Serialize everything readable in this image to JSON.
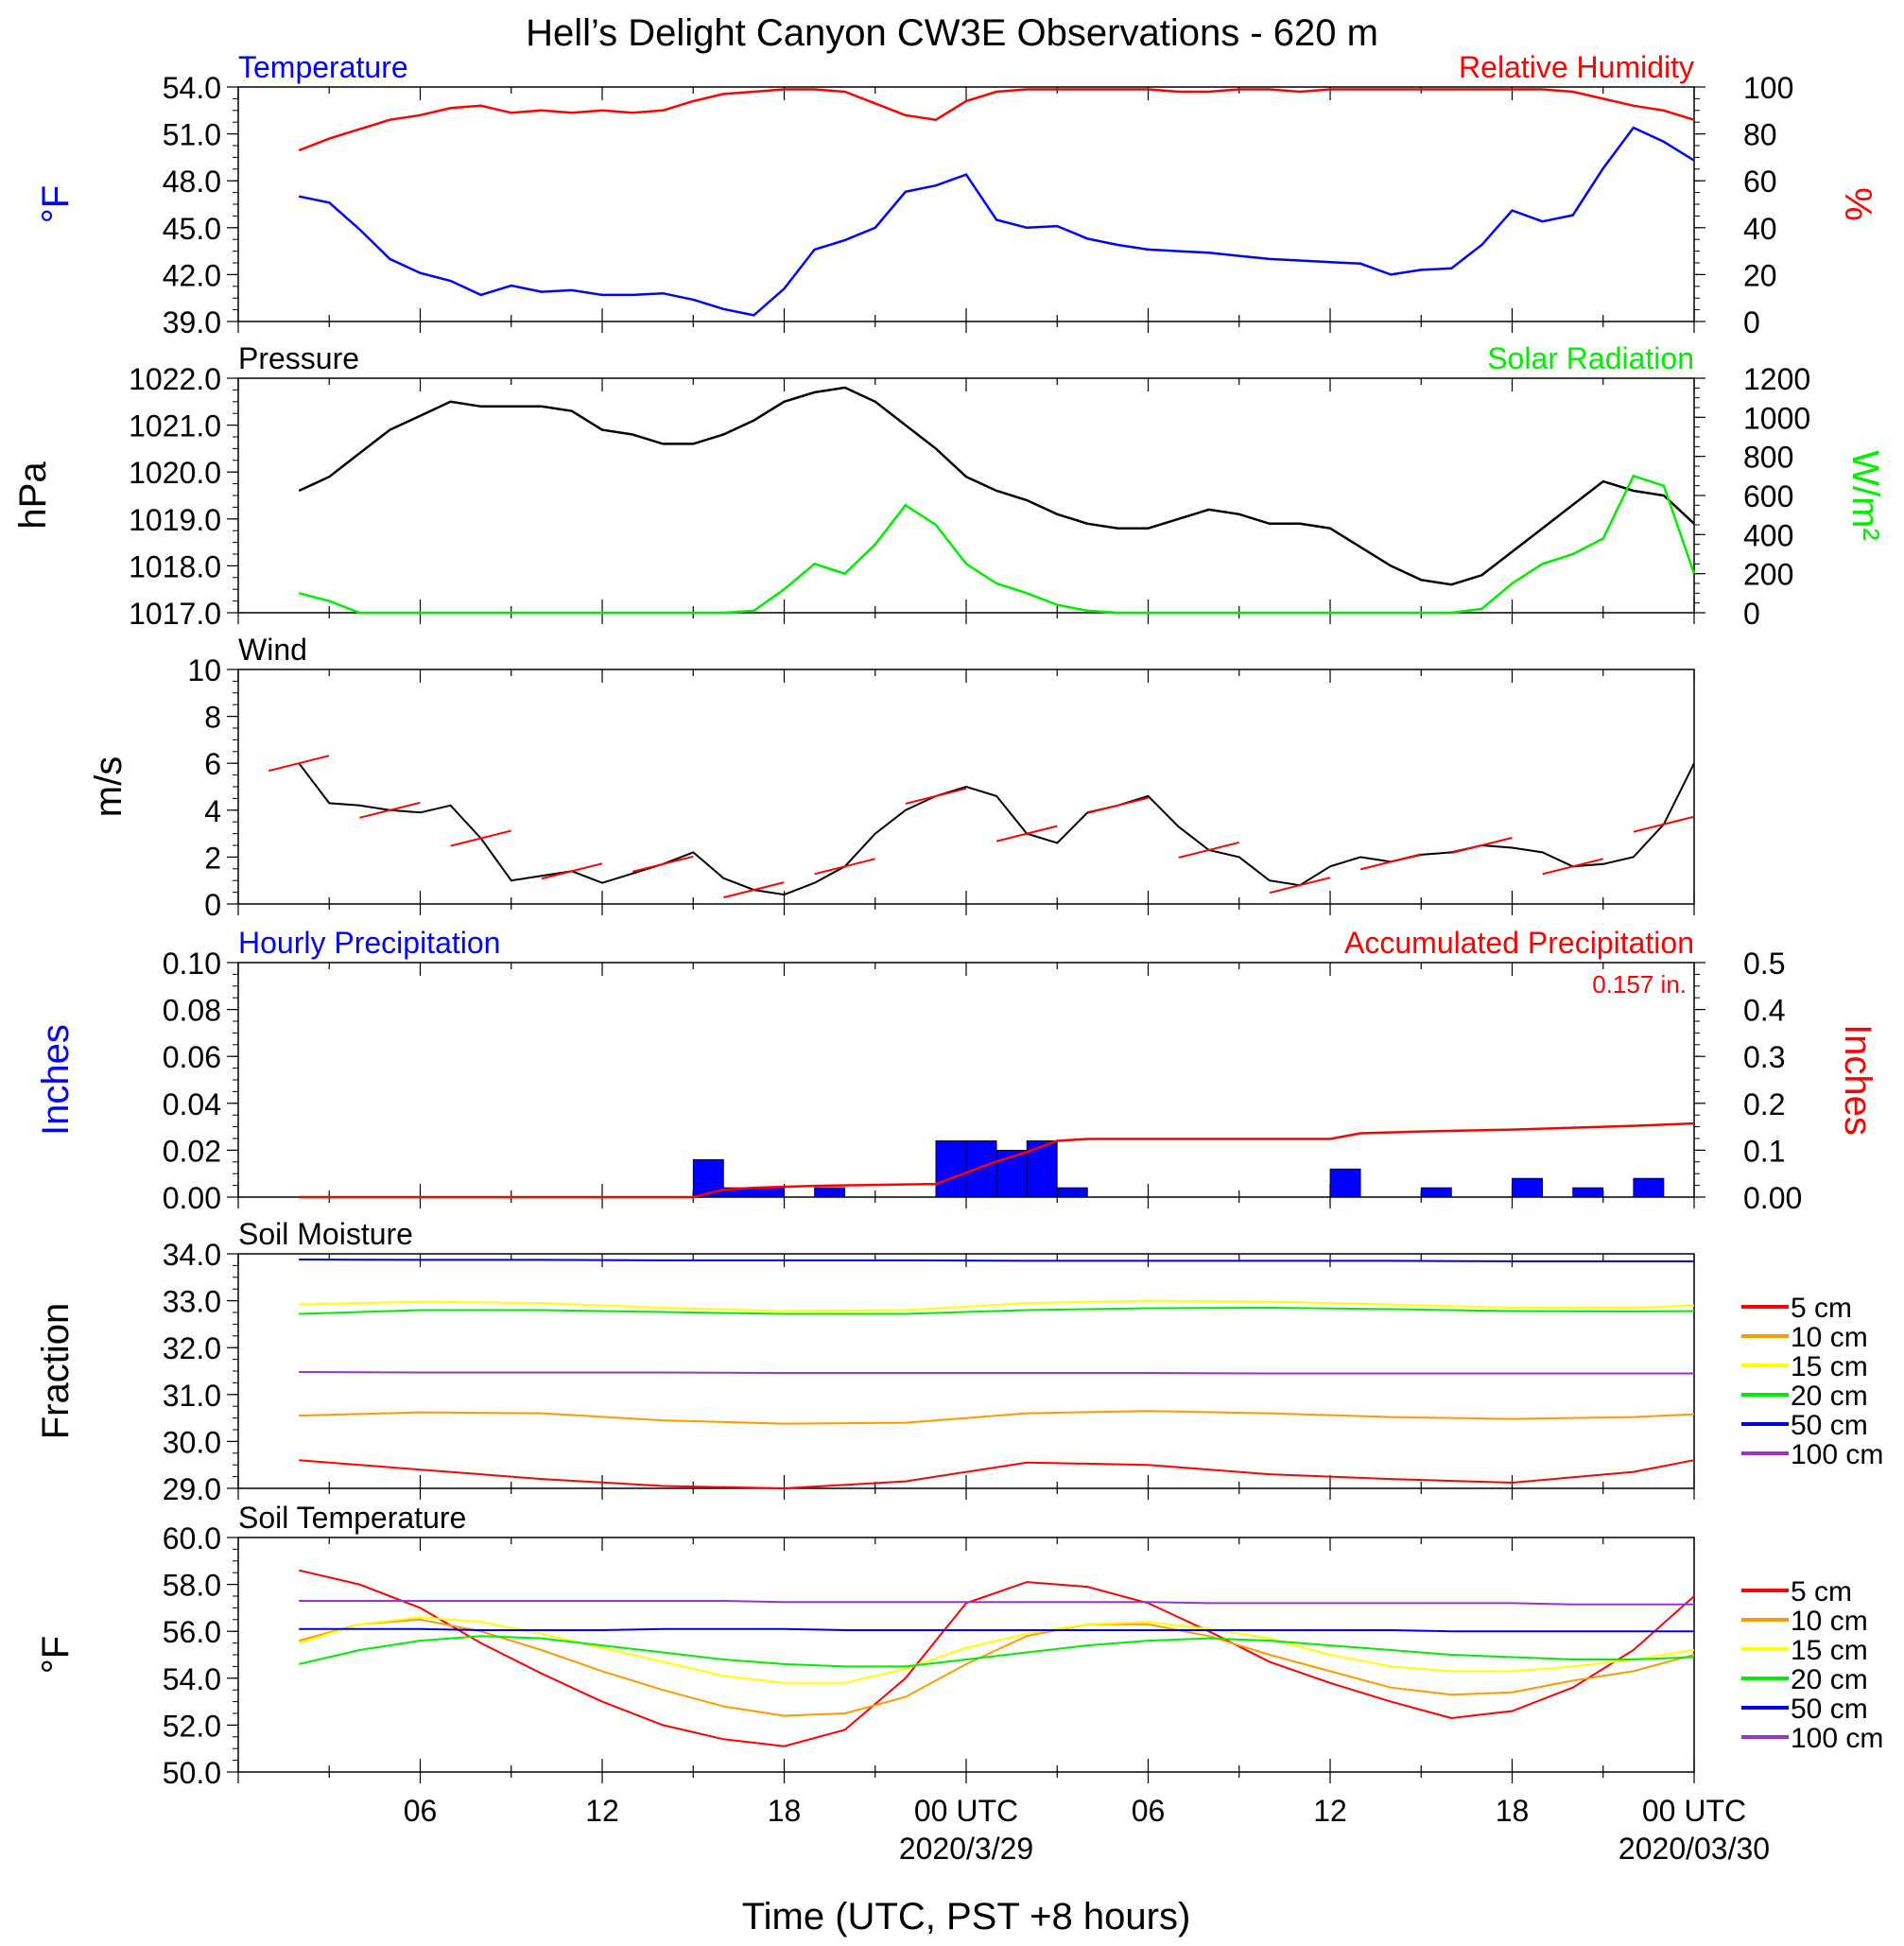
{
  "title": "Hell’s Delight Canyon CW3E Observations - 620 m",
  "x_axis": {
    "label": "Time (UTC, PST +8 hours)",
    "ticks": [
      "06",
      "12",
      "18",
      "00 UTC",
      "06",
      "12",
      "18",
      "00 UTC"
    ],
    "dates": [
      "2020/3/29",
      "2020/03/30"
    ]
  },
  "legend": {
    "entries": [
      "5 cm",
      "10 cm",
      "15 cm",
      "20 cm",
      "50 cm",
      "100 cm"
    ],
    "colors": [
      "#ff0000",
      "#ff9900",
      "#ffff00",
      "#00ee00",
      "#0000dd",
      "#9933cc"
    ]
  },
  "chart_data": [
    {
      "type": "line",
      "title_left": "Temperature",
      "title_right": "Relative Humidity",
      "ylabel_left": "°F",
      "ylabel_right": "%",
      "ylim_left": [
        39.0,
        54.0
      ],
      "ylim_right": [
        0,
        100
      ],
      "yticks_left": [
        "39.0",
        "42.0",
        "45.0",
        "48.0",
        "51.0",
        "54.0"
      ],
      "yticks_right": [
        "0",
        "20",
        "40",
        "60",
        "80",
        "100"
      ],
      "x_hours_since_start": [
        0,
        1,
        2,
        3,
        4,
        5,
        6,
        7,
        8,
        9,
        10,
        11,
        12,
        13,
        14,
        15,
        16,
        17,
        18,
        19,
        20,
        21,
        22,
        23,
        24,
        25,
        26,
        27,
        28,
        29,
        30,
        31,
        32,
        33,
        34,
        35,
        36,
        37,
        38,
        39,
        40,
        41,
        42,
        43,
        44,
        45,
        46
      ],
      "series": [
        {
          "name": "Temperature",
          "color": "#0000ff",
          "axis": "left",
          "values": [
            47.0,
            46.6,
            44.9,
            43.0,
            42.1,
            41.6,
            40.7,
            41.3,
            40.9,
            41.0,
            40.7,
            40.7,
            40.8,
            40.4,
            39.8,
            39.4,
            41.1,
            43.6,
            44.2,
            45.0,
            47.3,
            47.7,
            48.4,
            45.5,
            45.0,
            45.1,
            44.3,
            43.9,
            43.6,
            43.5,
            43.4,
            43.2,
            43.0,
            42.9,
            42.8,
            42.7,
            42.0,
            42.3,
            42.4,
            43.9,
            46.1,
            45.4,
            45.8,
            48.8,
            51.4,
            50.5,
            49.3
          ]
        },
        {
          "name": "Relative Humidity",
          "color": "#ff0000",
          "axis": "right",
          "values": [
            73,
            78,
            82,
            86,
            88,
            91,
            92,
            89,
            90,
            89,
            90,
            89,
            90,
            94,
            97,
            98,
            99,
            99,
            98,
            93,
            88,
            86,
            94,
            98,
            99,
            99,
            99,
            99,
            99,
            98,
            98,
            99,
            99,
            98,
            99,
            99,
            99,
            99,
            99,
            99,
            99,
            99,
            98,
            95,
            92,
            90,
            86
          ]
        }
      ]
    },
    {
      "type": "line",
      "title_left": "Pressure",
      "title_right": "Solar Radiation",
      "ylabel_left": "hPa",
      "ylabel_right": "W/m²",
      "ylim_left": [
        1017.0,
        1022.0
      ],
      "ylim_right": [
        0,
        1200
      ],
      "yticks_left": [
        "1017.0",
        "1018.0",
        "1019.0",
        "1020.0",
        "1021.0",
        "1022.0"
      ],
      "yticks_right": [
        "0",
        "200",
        "400",
        "600",
        "800",
        "1000",
        "1200"
      ],
      "x_hours_since_start": [
        0,
        1,
        2,
        3,
        4,
        5,
        6,
        7,
        8,
        9,
        10,
        11,
        12,
        13,
        14,
        15,
        16,
        17,
        18,
        19,
        20,
        21,
        22,
        23,
        24,
        25,
        26,
        27,
        28,
        29,
        30,
        31,
        32,
        33,
        34,
        35,
        36,
        37,
        38,
        39,
        40,
        41,
        42,
        43,
        44,
        45,
        46
      ],
      "series": [
        {
          "name": "Pressure",
          "color": "#000000",
          "axis": "left",
          "values": [
            1019.6,
            1019.9,
            1020.4,
            1020.9,
            1021.2,
            1021.5,
            1021.4,
            1021.4,
            1021.4,
            1021.3,
            1020.9,
            1020.8,
            1020.6,
            1020.6,
            1020.8,
            1021.1,
            1021.5,
            1021.7,
            1021.8,
            1021.5,
            1021.0,
            1020.5,
            1019.9,
            1019.6,
            1019.4,
            1019.1,
            1018.9,
            1018.8,
            1018.8,
            1019.0,
            1019.2,
            1019.1,
            1018.9,
            1018.9,
            1018.8,
            1018.4,
            1018.0,
            1017.7,
            1017.6,
            1017.8,
            1018.3,
            1018.8,
            1019.3,
            1019.8,
            1019.6,
            1019.5,
            1018.9
          ]
        },
        {
          "name": "Solar Radiation",
          "color": "#00ee00",
          "axis": "right",
          "values": [
            100,
            60,
            0,
            0,
            0,
            0,
            0,
            0,
            0,
            0,
            0,
            0,
            0,
            0,
            0,
            10,
            120,
            250,
            200,
            350,
            550,
            450,
            250,
            150,
            100,
            40,
            10,
            0,
            0,
            0,
            0,
            0,
            0,
            0,
            0,
            0,
            0,
            0,
            0,
            20,
            150,
            250,
            300,
            380,
            700,
            650,
            200
          ]
        }
      ]
    },
    {
      "type": "line",
      "title_left": "Wind",
      "ylabel_left": "m/s",
      "ylim_left": [
        0,
        10
      ],
      "yticks_left": [
        "0",
        "2",
        "4",
        "6",
        "8",
        "10"
      ],
      "x_hours_since_start": [
        0,
        1,
        2,
        3,
        4,
        5,
        6,
        7,
        8,
        9,
        10,
        11,
        12,
        13,
        14,
        15,
        16,
        17,
        18,
        19,
        20,
        21,
        22,
        23,
        24,
        25,
        26,
        27,
        28,
        29,
        30,
        31,
        32,
        33,
        34,
        35,
        36,
        37,
        38,
        39,
        40,
        41,
        42,
        43,
        44,
        45,
        46
      ],
      "series": [
        {
          "name": "Wind speed",
          "color": "#000000",
          "axis": "left",
          "values": [
            6.0,
            4.3,
            4.2,
            4.0,
            3.9,
            4.2,
            2.8,
            1.0,
            1.2,
            1.4,
            0.9,
            1.3,
            1.7,
            2.2,
            1.1,
            0.6,
            0.4,
            0.9,
            1.6,
            3.0,
            4.0,
            4.6,
            5.0,
            4.6,
            3.0,
            2.6,
            3.9,
            4.2,
            4.6,
            3.3,
            2.3,
            2.0,
            1.0,
            0.8,
            1.6,
            2.0,
            1.8,
            2.1,
            2.2,
            2.5,
            2.4,
            2.2,
            1.6,
            1.7,
            2.0,
            3.4,
            6.0
          ]
        }
      ],
      "barbs": "wind direction barbs plotted along the speed curve"
    },
    {
      "type": "bar",
      "title_left": "Hourly Precipitation",
      "title_right": "Accumulated Precipitation",
      "annotation": "0.157 in.",
      "ylabel_left": "Inches",
      "ylabel_right": "Inches",
      "ylim_left": [
        0,
        0.1
      ],
      "ylim_right": [
        0,
        0.5
      ],
      "yticks_left": [
        "0.00",
        "0.02",
        "0.04",
        "0.06",
        "0.08",
        "0.10"
      ],
      "yticks_right": [
        "0.00",
        "0.1",
        "0.2",
        "0.3",
        "0.4",
        "0.5"
      ],
      "hourly_bars": [
        {
          "hour": 13,
          "value": 0.016
        },
        {
          "hour": 14,
          "value": 0.004
        },
        {
          "hour": 15,
          "value": 0.004
        },
        {
          "hour": 17,
          "value": 0.004
        },
        {
          "hour": 21,
          "value": 0.024
        },
        {
          "hour": 22,
          "value": 0.024
        },
        {
          "hour": 23,
          "value": 0.02
        },
        {
          "hour": 24,
          "value": 0.024
        },
        {
          "hour": 25,
          "value": 0.004
        },
        {
          "hour": 34,
          "value": 0.012
        },
        {
          "hour": 37,
          "value": 0.004
        },
        {
          "hour": 40,
          "value": 0.008
        },
        {
          "hour": 42,
          "value": 0.004
        },
        {
          "hour": 44,
          "value": 0.008
        }
      ],
      "accumulated": {
        "name": "Accumulated Precipitation",
        "color": "#ff0000",
        "x_hours_since_start": [
          0,
          13,
          14,
          15,
          17,
          21,
          22,
          23,
          24,
          25,
          26,
          34,
          35,
          37,
          40,
          42,
          44,
          46
        ],
        "values": [
          0,
          0,
          0.016,
          0.02,
          0.024,
          0.028,
          0.052,
          0.076,
          0.096,
          0.12,
          0.124,
          0.124,
          0.136,
          0.14,
          0.144,
          0.148,
          0.152,
          0.157
        ]
      }
    },
    {
      "type": "line",
      "title_left": "Soil Moisture",
      "ylabel_left": "Fraction",
      "ylim_left": [
        29.0,
        34.0
      ],
      "yticks_left": [
        "29.0",
        "30.0",
        "31.0",
        "32.0",
        "33.0",
        "34.0"
      ],
      "x_hours_since_start": [
        0,
        4,
        8,
        12,
        16,
        20,
        24,
        28,
        32,
        36,
        40,
        44,
        46
      ],
      "series": [
        {
          "name": "5 cm",
          "color": "#ff0000",
          "values": [
            29.6,
            29.4,
            29.2,
            29.05,
            29.0,
            29.15,
            29.55,
            29.5,
            29.3,
            29.2,
            29.12,
            29.35,
            29.6
          ]
        },
        {
          "name": "10 cm",
          "color": "#ff9900",
          "values": [
            30.55,
            30.62,
            30.6,
            30.45,
            30.38,
            30.4,
            30.6,
            30.65,
            30.6,
            30.52,
            30.48,
            30.52,
            30.58
          ]
        },
        {
          "name": "15 cm",
          "color": "#ffff00",
          "values": [
            32.92,
            32.98,
            32.95,
            32.85,
            32.78,
            32.8,
            32.95,
            33.0,
            32.98,
            32.92,
            32.85,
            32.85,
            32.9
          ]
        },
        {
          "name": "20 cm",
          "color": "#00ee00",
          "values": [
            32.72,
            32.8,
            32.8,
            32.76,
            32.72,
            32.72,
            32.8,
            32.84,
            32.85,
            32.82,
            32.78,
            32.77,
            32.78
          ]
        },
        {
          "name": "50 cm",
          "color": "#0000dd",
          "values": [
            33.88,
            33.87,
            33.87,
            33.86,
            33.86,
            33.86,
            33.85,
            33.85,
            33.85,
            33.85,
            33.84,
            33.84,
            33.84
          ]
        },
        {
          "name": "100 cm",
          "color": "#9933cc",
          "values": [
            31.48,
            31.47,
            31.47,
            31.47,
            31.46,
            31.46,
            31.46,
            31.46,
            31.45,
            31.45,
            31.45,
            31.45,
            31.45
          ]
        }
      ]
    },
    {
      "type": "line",
      "title_left": "Soil Temperature",
      "ylabel_left": "°F",
      "ylim_left": [
        50.0,
        60.0
      ],
      "yticks_left": [
        "50.0",
        "52.0",
        "54.0",
        "56.0",
        "58.0",
        "60.0"
      ],
      "x_hours_since_start": [
        0,
        2,
        4,
        6,
        8,
        10,
        12,
        14,
        16,
        18,
        20,
        22,
        24,
        26,
        28,
        30,
        32,
        34,
        36,
        38,
        40,
        42,
        44,
        46
      ],
      "series": [
        {
          "name": "5 cm",
          "color": "#ff0000",
          "values": [
            58.6,
            58.0,
            57.0,
            55.5,
            54.2,
            53.0,
            52.0,
            51.4,
            51.1,
            51.8,
            54.0,
            57.2,
            58.1,
            57.9,
            57.2,
            56.0,
            54.7,
            53.8,
            53.0,
            52.3,
            52.6,
            53.6,
            55.2,
            57.5
          ]
        },
        {
          "name": "10 cm",
          "color": "#ff9900",
          "values": [
            55.6,
            56.3,
            56.5,
            56.0,
            55.2,
            54.3,
            53.5,
            52.8,
            52.4,
            52.5,
            53.2,
            54.6,
            55.8,
            56.3,
            56.3,
            55.8,
            55.0,
            54.3,
            53.6,
            53.3,
            53.4,
            53.9,
            54.3,
            55.0
          ]
        },
        {
          "name": "15 cm",
          "color": "#ffff00",
          "values": [
            55.5,
            56.3,
            56.6,
            56.4,
            55.9,
            55.3,
            54.7,
            54.1,
            53.8,
            53.8,
            54.4,
            55.3,
            55.9,
            56.3,
            56.4,
            56.1,
            55.7,
            55.0,
            54.5,
            54.3,
            54.3,
            54.5,
            54.8,
            55.2
          ]
        },
        {
          "name": "20 cm",
          "color": "#00ee00",
          "values": [
            54.6,
            55.2,
            55.6,
            55.8,
            55.7,
            55.4,
            55.1,
            54.8,
            54.6,
            54.5,
            54.5,
            54.8,
            55.1,
            55.4,
            55.6,
            55.7,
            55.6,
            55.4,
            55.2,
            55.0,
            54.9,
            54.8,
            54.8,
            54.9
          ]
        },
        {
          "name": "50 cm",
          "color": "#0000dd",
          "values": [
            56.1,
            56.1,
            56.1,
            56.05,
            56.05,
            56.05,
            56.1,
            56.1,
            56.1,
            56.05,
            56.05,
            56.05,
            56.05,
            56.05,
            56.05,
            56.05,
            56.05,
            56.05,
            56.05,
            56.0,
            56.0,
            56.0,
            56.0,
            56.0
          ]
        },
        {
          "name": "100 cm",
          "color": "#9933cc",
          "values": [
            57.3,
            57.3,
            57.3,
            57.3,
            57.3,
            57.3,
            57.3,
            57.3,
            57.25,
            57.25,
            57.25,
            57.25,
            57.25,
            57.25,
            57.25,
            57.2,
            57.2,
            57.2,
            57.2,
            57.2,
            57.2,
            57.15,
            57.15,
            57.15
          ]
        }
      ]
    }
  ]
}
